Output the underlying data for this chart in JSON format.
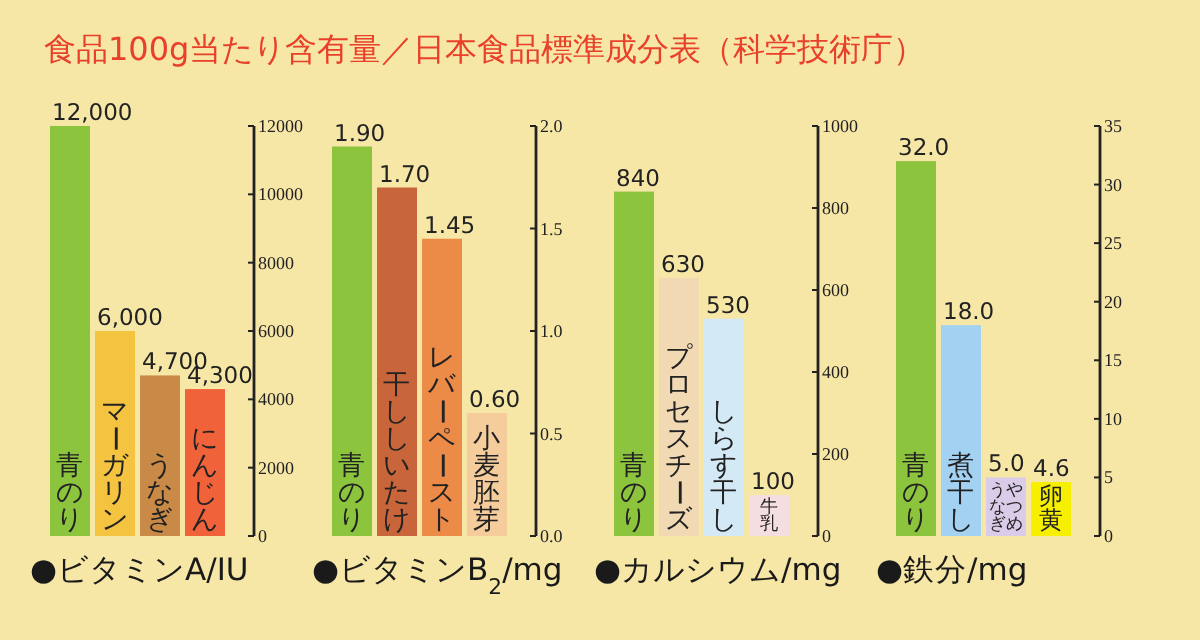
{
  "chart_data": [
    {
      "type": "bar",
      "title": "食品100g当たり含有量／日本食品標準成分表（科学技術庁）",
      "xlabel": "●ビタミンA/IU",
      "categories": [
        "青のり",
        "マーガリン",
        "うなぎ",
        "にんじん"
      ],
      "values": [
        12000,
        6000,
        4700,
        4300
      ],
      "value_labels": [
        "12,000",
        "6,000",
        "4,700",
        "4,300"
      ],
      "colors": [
        "#8cc43e",
        "#f4c340",
        "#c98a48",
        "#f0623a"
      ],
      "ylim": [
        0,
        12000
      ],
      "yticks": [
        0,
        2000,
        4000,
        6000,
        8000,
        10000,
        12000
      ]
    },
    {
      "type": "bar",
      "xlabel": "●ビタミンB$_{2}$/mg",
      "categories": [
        "青のり",
        "干ししいたけ",
        "レバーペースト",
        "小麦胚芽"
      ],
      "values": [
        1.9,
        1.7,
        1.45,
        0.6
      ],
      "value_labels": [
        "1.90",
        "1.70",
        "1.45",
        "0.60"
      ],
      "colors": [
        "#8cc43e",
        "#c8653a",
        "#ec8a48",
        "#f5cc9c"
      ],
      "ylim": [
        0,
        2
      ],
      "yticks": [
        {
          "value": 0,
          "label": "0.0"
        },
        0.5,
        {
          "value": 1,
          "label": "1.0"
        },
        1.5,
        {
          "value": 2,
          "label": "2.0"
        }
      ]
    },
    {
      "type": "bar",
      "xlabel": "●カルシウム/mg",
      "categories": [
        "青のり",
        "プロセスチーズ",
        "しらす干し",
        "牛乳"
      ],
      "values": [
        840,
        630,
        530,
        100
      ],
      "value_labels": [
        "840",
        "630",
        "530",
        "100"
      ],
      "colors": [
        "#8cc43e",
        "#f1d9b4",
        "#d3e9f6",
        "#f5dee0"
      ],
      "ylim": [
        0,
        1000
      ],
      "yticks": [
        0,
        200,
        400,
        600,
        800,
        1000
      ]
    },
    {
      "type": "bar",
      "xlabel": "●鉄分/mg",
      "categories": [
        "青のり",
        "煮干し",
        "やつめうなぎ",
        "卵黄"
      ],
      "values": [
        32,
        18,
        5,
        4.6
      ],
      "value_labels": [
        "32.0",
        "18.0",
        "5.0",
        "4.6"
      ],
      "colors": [
        "#8cc43e",
        "#a2d1f1",
        "#dacbe8",
        "#f6f000"
      ],
      "ylim": [
        0,
        35
      ],
      "yticks": [
        0,
        5,
        10,
        15,
        20,
        25,
        30,
        35
      ]
    }
  ]
}
